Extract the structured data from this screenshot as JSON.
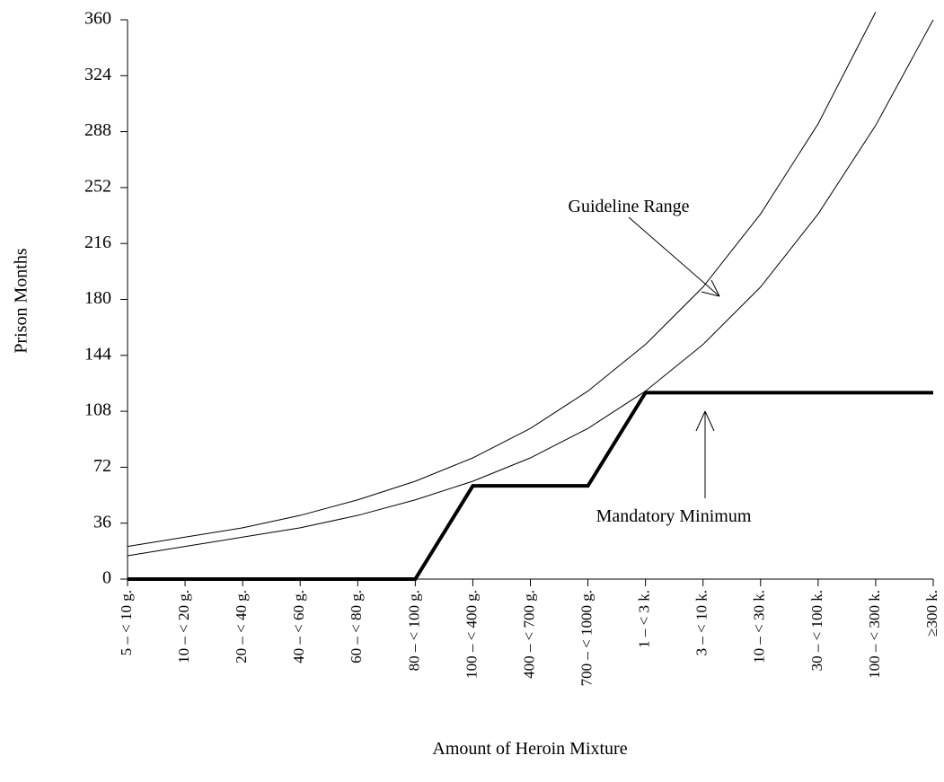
{
  "chart_data": {
    "type": "line",
    "x_label": "Amount of Heroin Mixture",
    "y_label": "Prison Months",
    "categories": [
      "5 – < 10 g.",
      "10 – < 20 g.",
      "20 – < 40 g.",
      "40 – < 60 g.",
      "60 – < 80 g.",
      "80 – < 100 g.",
      "100 – < 400 g.",
      "400 – < 700 g.",
      "700 – < 1000 g.",
      "1 – < 3 k.",
      "3 – < 10 k.",
      "10 – < 30 k.",
      "30 – < 100 k.",
      "100 – < 300 k.",
      "≥300 k."
    ],
    "series": [
      {
        "name": "Guideline Range upper",
        "color": "#000000",
        "width": 1,
        "values": [
          21,
          27,
          33,
          41,
          51,
          63,
          78,
          97,
          121,
          151,
          188,
          235,
          293,
          365,
          null
        ]
      },
      {
        "name": "Guideline Range lower",
        "color": "#000000",
        "width": 1,
        "values": [
          15,
          21,
          27,
          33,
          41,
          51,
          63,
          78,
          97,
          121,
          151,
          188,
          235,
          292,
          360
        ]
      },
      {
        "name": "Mandatory Minimum",
        "color": "#000000",
        "width": 4,
        "values": [
          0,
          0,
          0,
          0,
          0,
          0,
          60,
          60,
          60,
          120,
          120,
          120,
          120,
          120,
          120
        ]
      }
    ],
    "annotations": [
      "Guideline Range",
      "Mandatory Minimum"
    ],
    "ylim": [
      0,
      360
    ],
    "yticks": [
      0,
      36,
      72,
      108,
      144,
      180,
      216,
      252,
      288,
      324,
      360
    ],
    "grid": false
  }
}
